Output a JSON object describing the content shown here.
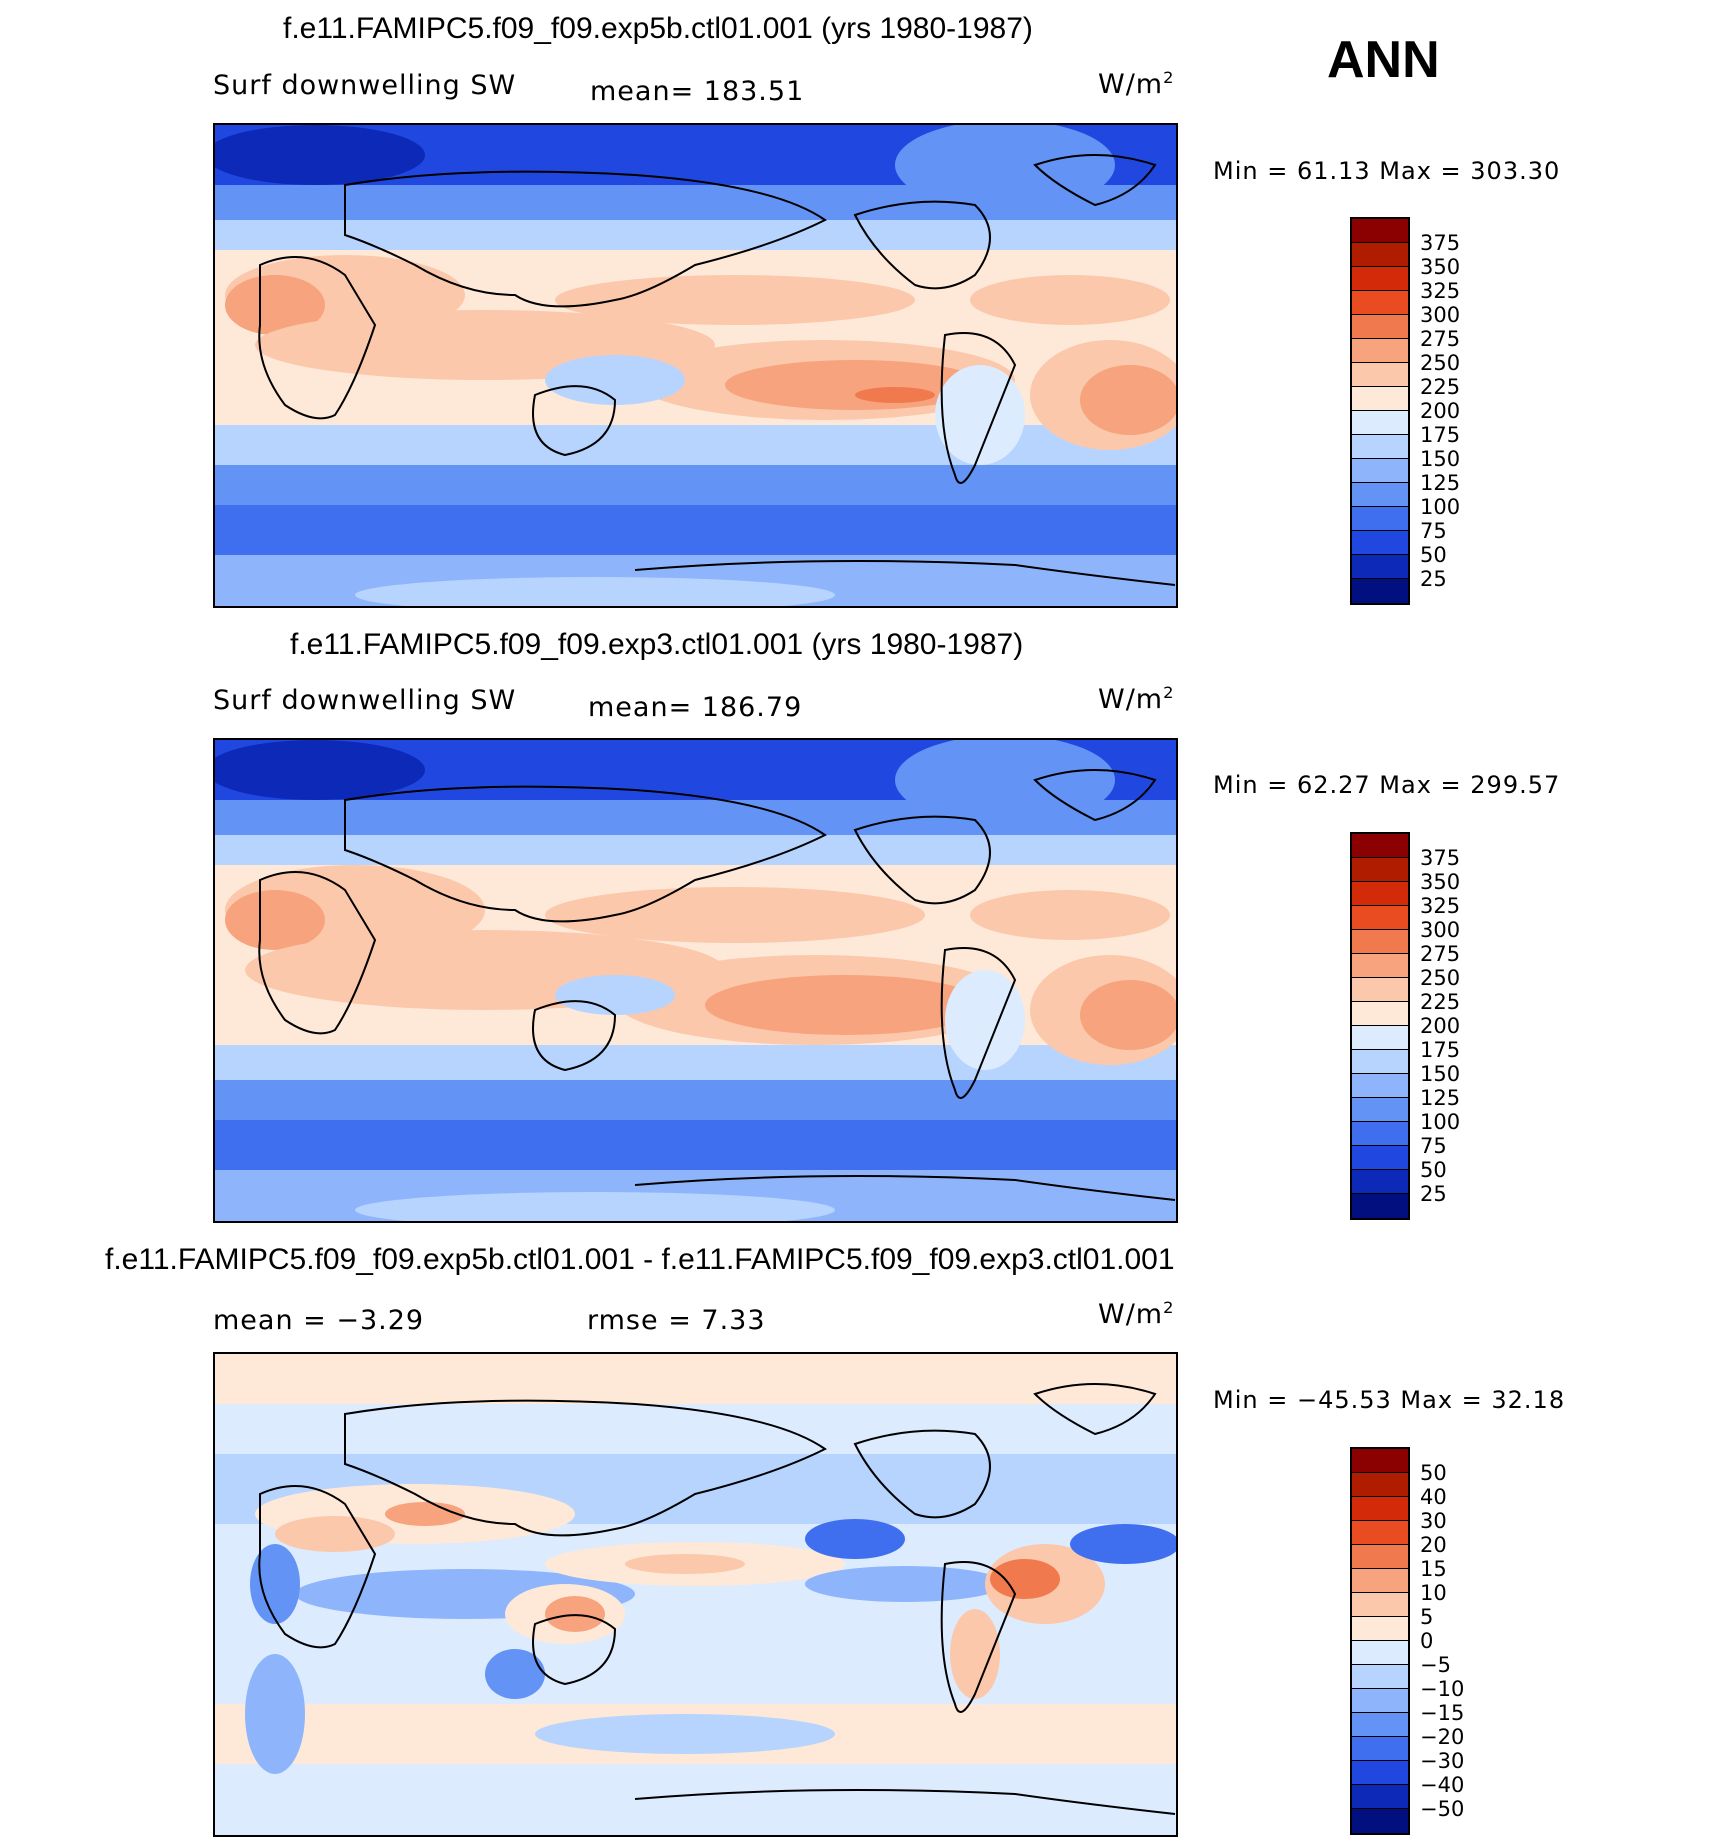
{
  "season": "ANN",
  "panels": [
    {
      "id": "panel1",
      "title": "f.e11.FAMIPC5.f09_f09.exp5b.ctl01.001 (yrs 1980-1987)",
      "left_label": "Surf downwelling SW",
      "center_label": "mean=  183.51",
      "right_label_base": "W/m",
      "right_label_sup": "2",
      "minmax": "Min =   61.13 Max =  303.30",
      "colorbar": {
        "colors": [
          "#8B0000",
          "#B01C00",
          "#D32A0A",
          "#E84C20",
          "#F07A4E",
          "#F7A37E",
          "#FBC8AC",
          "#FEE9D8",
          "#DCEBFE",
          "#B7D4FE",
          "#8EB5FB",
          "#6393F5",
          "#3F6FEE",
          "#2048E0",
          "#0C29B8",
          "#02107F"
        ],
        "ticks": [
          "375",
          "350",
          "325",
          "300",
          "275",
          "250",
          "225",
          "200",
          "175",
          "150",
          "125",
          "100",
          "75",
          "50",
          "25"
        ]
      }
    },
    {
      "id": "panel2",
      "title": "f.e11.FAMIPC5.f09_f09.exp3.ctl01.001 (yrs 1980-1987)",
      "left_label": "Surf downwelling SW",
      "center_label": "mean=  186.79",
      "right_label_base": "W/m",
      "right_label_sup": "2",
      "minmax": "Min =   62.27 Max =  299.57",
      "colorbar": {
        "colors": [
          "#8B0000",
          "#B01C00",
          "#D32A0A",
          "#E84C20",
          "#F07A4E",
          "#F7A37E",
          "#FBC8AC",
          "#FEE9D8",
          "#DCEBFE",
          "#B7D4FE",
          "#8EB5FB",
          "#6393F5",
          "#3F6FEE",
          "#2048E0",
          "#0C29B8",
          "#02107F"
        ],
        "ticks": [
          "375",
          "350",
          "325",
          "300",
          "275",
          "250",
          "225",
          "200",
          "175",
          "150",
          "125",
          "100",
          "75",
          "50",
          "25"
        ]
      }
    },
    {
      "id": "panel3",
      "title": "f.e11.FAMIPC5.f09_f09.exp5b.ctl01.001 - f.e11.FAMIPC5.f09_f09.exp3.ctl01.001",
      "left_label": "mean =   −3.29",
      "center_label": "rmse =    7.33",
      "right_label_base": "W/m",
      "right_label_sup": "2",
      "minmax": "Min = −45.53 Max =   32.18",
      "colorbar": {
        "colors": [
          "#8B0000",
          "#B01C00",
          "#D32A0A",
          "#E84C20",
          "#F07A4E",
          "#F7A37E",
          "#FBC8AC",
          "#FEE9D8",
          "#DCEBFE",
          "#B7D4FE",
          "#8EB5FB",
          "#6393F5",
          "#3F6FEE",
          "#2048E0",
          "#0C29B8",
          "#02107F"
        ],
        "ticks": [
          "50",
          "40",
          "30",
          "20",
          "15",
          "10",
          "5",
          "0",
          "−5",
          "−10",
          "−15",
          "−20",
          "−30",
          "−40",
          "−50"
        ]
      }
    }
  ]
}
